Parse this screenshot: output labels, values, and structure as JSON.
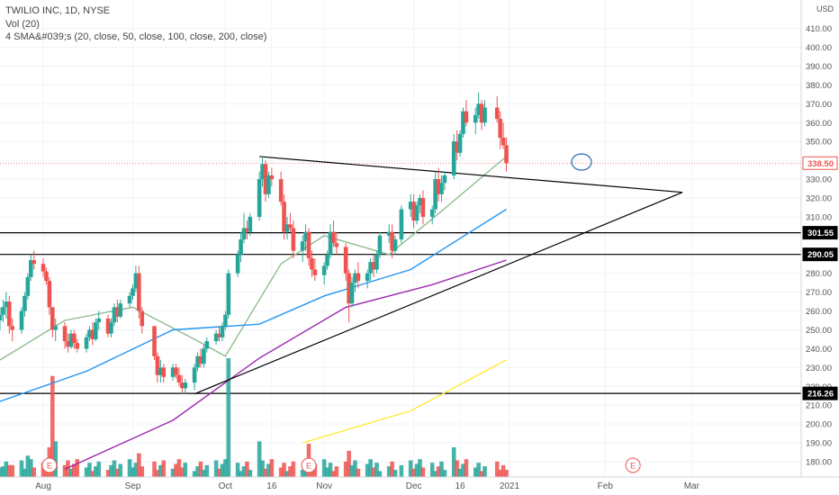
{
  "legend": {
    "title": "TWILIO INC, 1D, NYSE",
    "volume": "Vol (20)",
    "sma": "4 SMA&#039;s (20, close, 50, close, 100, close, 200, close)"
  },
  "axis": {
    "currency": "USD",
    "price_ticks": [
      "180.00",
      "190.00",
      "200.00",
      "210.00",
      "220.00",
      "230.00",
      "240.00",
      "250.00",
      "260.00",
      "270.00",
      "280.00",
      "290.00",
      "300.00",
      "310.00",
      "320.00",
      "330.00",
      "340.00",
      "350.00",
      "360.00",
      "370.00",
      "380.00",
      "390.00",
      "400.00",
      "410.00"
    ],
    "time_ticks": [
      "Aug",
      "Sep",
      "Oct",
      "16",
      "Nov",
      "Dec",
      "16",
      "2021",
      "Feb",
      "Mar"
    ],
    "earnings_marker": "E"
  },
  "price_labels": {
    "last": "338.50",
    "level_upper": "301.55",
    "level_lower": "290.05",
    "level_support": "216.26"
  },
  "colors": {
    "up": "#26a69a",
    "down": "#ef5350",
    "sma20": "#8fbc8f",
    "sma50": "#2196f3",
    "sma100": "#9c27b0",
    "sma200": "#ffeb3b",
    "last_price": "#ef5350"
  },
  "chart_data": {
    "type": "candlestick",
    "ylim": [
      170,
      415
    ],
    "levels": [
      301.55,
      290.05,
      216.26
    ],
    "last_price": 338.5,
    "earnings_dates": [
      "2020-08-05",
      "2020-10-28",
      "2021-02-10"
    ],
    "trendlines": [
      {
        "from": [
          "2020-10-12",
          342
        ],
        "to": [
          "2021-02-26",
          323
        ]
      },
      {
        "from": [
          "2020-09-21",
          216
        ],
        "to": [
          "2021-02-26",
          323
        ]
      }
    ],
    "ohlc": [
      [
        "2020-07-20",
        255,
        262,
        250,
        258
      ],
      [
        "2020-07-21",
        258,
        266,
        254,
        262
      ],
      [
        "2020-07-22",
        262,
        270,
        256,
        265
      ],
      [
        "2020-07-23",
        265,
        268,
        248,
        252
      ],
      [
        "2020-07-24",
        252,
        256,
        244,
        250
      ],
      [
        "2020-07-27",
        250,
        262,
        248,
        260
      ],
      [
        "2020-07-28",
        260,
        270,
        257,
        268
      ],
      [
        "2020-07-29",
        268,
        280,
        266,
        278
      ],
      [
        "2020-07-30",
        278,
        290,
        276,
        287
      ],
      [
        "2020-07-31",
        287,
        292,
        282,
        285
      ],
      [
        "2020-08-03",
        285,
        288,
        278,
        281
      ],
      [
        "2020-08-04",
        281,
        283,
        274,
        276
      ],
      [
        "2020-08-05",
        276,
        278,
        258,
        262
      ],
      [
        "2020-08-06",
        262,
        262,
        246,
        250
      ],
      [
        "2020-08-07",
        250,
        256,
        244,
        252
      ],
      [
        "2020-08-10",
        252,
        254,
        240,
        244
      ],
      [
        "2020-08-11",
        244,
        248,
        238,
        241
      ],
      [
        "2020-08-12",
        241,
        250,
        240,
        248
      ],
      [
        "2020-08-13",
        248,
        250,
        240,
        243
      ],
      [
        "2020-08-14",
        243,
        245,
        238,
        240
      ],
      [
        "2020-08-17",
        240,
        248,
        238,
        246
      ],
      [
        "2020-08-18",
        246,
        252,
        244,
        250
      ],
      [
        "2020-08-19",
        250,
        254,
        242,
        245
      ],
      [
        "2020-08-20",
        245,
        256,
        244,
        254
      ],
      [
        "2020-08-21",
        254,
        260,
        250,
        256
      ],
      [
        "2020-08-24",
        256,
        258,
        246,
        248
      ],
      [
        "2020-08-25",
        248,
        256,
        246,
        254
      ],
      [
        "2020-08-26",
        254,
        264,
        252,
        262
      ],
      [
        "2020-08-27",
        262,
        266,
        254,
        257
      ],
      [
        "2020-08-28",
        257,
        266,
        256,
        264
      ],
      [
        "2020-08-31",
        264,
        270,
        262,
        268
      ],
      [
        "2020-09-01",
        268,
        274,
        266,
        272
      ],
      [
        "2020-09-02",
        272,
        284,
        270,
        280
      ],
      [
        "2020-09-03",
        280,
        284,
        256,
        260
      ],
      [
        "2020-09-04",
        260,
        262,
        248,
        252
      ],
      [
        "2020-09-08",
        252,
        252,
        234,
        236
      ],
      [
        "2020-09-09",
        236,
        238,
        222,
        226
      ],
      [
        "2020-09-10",
        226,
        234,
        222,
        230
      ],
      [
        "2020-09-11",
        230,
        232,
        222,
        225
      ],
      [
        "2020-09-14",
        225,
        232,
        223,
        230
      ],
      [
        "2020-09-15",
        230,
        232,
        224,
        226
      ],
      [
        "2020-09-16",
        226,
        230,
        220,
        222
      ],
      [
        "2020-09-17",
        222,
        226,
        216,
        219
      ],
      [
        "2020-09-18",
        219,
        224,
        216,
        222
      ],
      [
        "2020-09-21",
        222,
        232,
        218,
        230
      ],
      [
        "2020-09-22",
        230,
        238,
        228,
        236
      ],
      [
        "2020-09-23",
        236,
        240,
        230,
        232
      ],
      [
        "2020-09-24",
        232,
        242,
        230,
        240
      ],
      [
        "2020-09-25",
        240,
        246,
        238,
        244
      ],
      [
        "2020-09-28",
        244,
        250,
        242,
        248
      ],
      [
        "2020-09-29",
        248,
        252,
        244,
        246
      ],
      [
        "2020-09-30",
        246,
        254,
        244,
        252
      ],
      [
        "2020-10-01",
        252,
        260,
        250,
        258
      ],
      [
        "2020-10-02",
        258,
        282,
        256,
        280
      ],
      [
        "2020-10-05",
        280,
        292,
        278,
        290
      ],
      [
        "2020-10-06",
        290,
        302,
        286,
        298
      ],
      [
        "2020-10-07",
        298,
        312,
        296,
        304
      ],
      [
        "2020-10-08",
        304,
        308,
        298,
        302
      ],
      [
        "2020-10-09",
        302,
        312,
        300,
        310
      ],
      [
        "2020-10-12",
        310,
        334,
        308,
        330
      ],
      [
        "2020-10-13",
        330,
        342,
        326,
        338
      ],
      [
        "2020-10-14",
        338,
        340,
        318,
        322
      ],
      [
        "2020-10-15",
        322,
        334,
        320,
        332
      ],
      [
        "2020-10-16",
        332,
        336,
        326,
        330
      ],
      [
        "2020-10-19",
        330,
        334,
        316,
        318
      ],
      [
        "2020-10-20",
        318,
        322,
        298,
        302
      ],
      [
        "2020-10-21",
        302,
        310,
        298,
        306
      ],
      [
        "2020-10-22",
        306,
        312,
        302,
        304
      ],
      [
        "2020-10-23",
        304,
        308,
        288,
        292
      ],
      [
        "2020-10-26",
        292,
        300,
        286,
        297
      ],
      [
        "2020-10-27",
        297,
        306,
        292,
        302
      ],
      [
        "2020-10-28",
        302,
        304,
        284,
        288
      ],
      [
        "2020-10-29",
        288,
        292,
        278,
        282
      ],
      [
        "2020-10-30",
        282,
        288,
        276,
        279
      ],
      [
        "2020-11-02",
        279,
        286,
        274,
        284
      ],
      [
        "2020-11-03",
        284,
        292,
        282,
        290
      ],
      [
        "2020-11-04",
        290,
        306,
        288,
        302
      ],
      [
        "2020-11-05",
        302,
        308,
        294,
        296
      ],
      [
        "2020-11-06",
        296,
        302,
        290,
        294
      ],
      [
        "2020-11-09",
        294,
        296,
        276,
        280
      ],
      [
        "2020-11-10",
        280,
        282,
        254,
        264
      ],
      [
        "2020-11-11",
        264,
        278,
        262,
        275
      ],
      [
        "2020-11-12",
        275,
        282,
        270,
        280
      ],
      [
        "2020-11-13",
        280,
        286,
        272,
        276
      ],
      [
        "2020-11-16",
        276,
        282,
        272,
        280
      ],
      [
        "2020-11-17",
        280,
        288,
        276,
        286
      ],
      [
        "2020-11-18",
        286,
        290,
        278,
        282
      ],
      [
        "2020-11-19",
        282,
        292,
        280,
        290
      ],
      [
        "2020-11-20",
        290,
        302,
        288,
        300
      ],
      [
        "2020-11-23",
        300,
        306,
        296,
        302
      ],
      [
        "2020-11-24",
        302,
        306,
        288,
        292
      ],
      [
        "2020-11-25",
        292,
        300,
        290,
        298
      ],
      [
        "2020-11-27",
        298,
        316,
        296,
        314
      ],
      [
        "2020-11-30",
        314,
        322,
        310,
        318
      ],
      [
        "2020-12-01",
        318,
        322,
        304,
        308
      ],
      [
        "2020-12-02",
        308,
        318,
        306,
        316
      ],
      [
        "2020-12-03",
        316,
        322,
        312,
        320
      ],
      [
        "2020-12-04",
        320,
        324,
        306,
        310
      ],
      [
        "2020-12-07",
        310,
        316,
        306,
        314
      ],
      [
        "2020-12-08",
        314,
        334,
        312,
        330
      ],
      [
        "2020-12-09",
        330,
        336,
        318,
        322
      ],
      [
        "2020-12-10",
        322,
        332,
        318,
        328
      ],
      [
        "2020-12-11",
        328,
        334,
        324,
        332
      ],
      [
        "2020-12-14",
        332,
        354,
        330,
        350
      ],
      [
        "2020-12-15",
        350,
        356,
        340,
        344
      ],
      [
        "2020-12-16",
        344,
        356,
        342,
        354
      ],
      [
        "2020-12-17",
        354,
        368,
        352,
        366
      ],
      [
        "2020-12-18",
        366,
        372,
        358,
        360
      ],
      [
        "2020-12-21",
        360,
        368,
        354,
        364
      ],
      [
        "2020-12-22",
        364,
        376,
        362,
        370
      ],
      [
        "2020-12-23",
        370,
        372,
        356,
        360
      ],
      [
        "2020-12-24",
        360,
        372,
        358,
        368
      ],
      [
        "2020-12-28",
        368,
        374,
        360,
        362
      ],
      [
        "2020-12-29",
        362,
        366,
        346,
        352
      ],
      [
        "2020-12-30",
        352,
        360,
        346,
        348
      ],
      [
        "2020-12-31",
        348,
        352,
        334,
        338.5
      ]
    ],
    "volume": [
      {
        "date": "2020-07-20",
        "height": 0.08
      },
      {
        "date": "2020-07-23",
        "height": 0.1
      },
      {
        "date": "2020-07-29",
        "height": 0.18
      },
      {
        "date": "2020-08-05",
        "height": 0.25
      },
      {
        "date": "2020-08-06",
        "height": 0.85
      },
      {
        "date": "2020-08-07",
        "height": 0.3
      },
      {
        "date": "2020-09-03",
        "height": 0.2
      },
      {
        "date": "2020-10-02",
        "height": 1.0
      },
      {
        "date": "2020-10-12",
        "height": 0.3
      },
      {
        "date": "2020-10-28",
        "height": 0.28
      },
      {
        "date": "2020-11-10",
        "height": 0.22
      },
      {
        "date": "2020-12-14",
        "height": 0.25
      },
      {
        "date": "2020-12-31",
        "height": 0.06
      }
    ],
    "sma": [
      {
        "name": "20",
        "values": [
          [
            "2020-07-20",
            234
          ],
          [
            "2020-08-10",
            255
          ],
          [
            "2020-09-01",
            262
          ],
          [
            "2020-09-21",
            245
          ],
          [
            "2020-10-01",
            236
          ],
          [
            "2020-10-19",
            285
          ],
          [
            "2020-11-02",
            300
          ],
          [
            "2020-11-23",
            290
          ],
          [
            "2020-12-10",
            313
          ],
          [
            "2020-12-31",
            342
          ]
        ]
      },
      {
        "name": "50",
        "values": [
          [
            "2020-07-20",
            212
          ],
          [
            "2020-08-17",
            228
          ],
          [
            "2020-09-14",
            250
          ],
          [
            "2020-10-12",
            253
          ],
          [
            "2020-11-02",
            268
          ],
          [
            "2020-11-30",
            282
          ],
          [
            "2020-12-31",
            314
          ]
        ]
      },
      {
        "name": "100",
        "values": [
          [
            "2020-08-10",
            176
          ],
          [
            "2020-09-14",
            202
          ],
          [
            "2020-10-12",
            235
          ],
          [
            "2020-11-09",
            262
          ],
          [
            "2020-12-07",
            274
          ],
          [
            "2020-12-31",
            287
          ]
        ]
      },
      {
        "name": "200",
        "values": [
          [
            "2020-10-26",
            190
          ],
          [
            "2020-11-30",
            207
          ],
          [
            "2020-12-31",
            234
          ]
        ]
      }
    ]
  }
}
